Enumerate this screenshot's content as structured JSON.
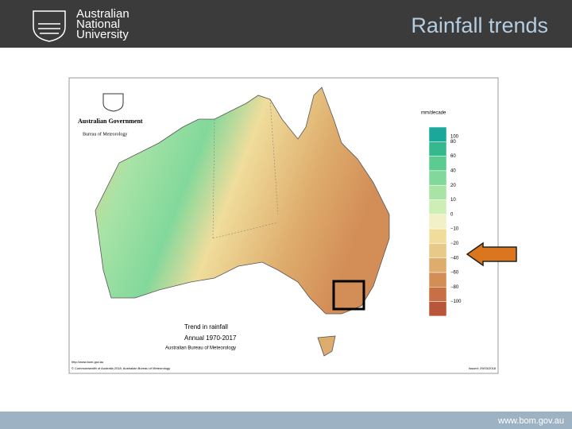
{
  "header": {
    "logo": {
      "line1": "Australian",
      "line2": "National",
      "line3": "University"
    },
    "title": "Rainfall trends"
  },
  "map": {
    "agency": {
      "government": "Australian Government",
      "bureau": "Bureau of Meteorology"
    },
    "legend": {
      "unit": "mm/decade",
      "items": [
        {
          "label": "100",
          "color": "#1aa89a"
        },
        {
          "label": "80",
          "color": "#36b88f"
        },
        {
          "label": "60",
          "color": "#5ccb8f"
        },
        {
          "label": "40",
          "color": "#82d89b"
        },
        {
          "label": "20",
          "color": "#a9e3a6"
        },
        {
          "label": "10",
          "color": "#cdeeb5"
        },
        {
          "label": "0",
          "color": "#f2f0c6"
        },
        {
          "label": "−10",
          "color": "#f0dd9c"
        },
        {
          "label": "−20",
          "color": "#e8c987"
        },
        {
          "label": "−40",
          "color": "#deac6c"
        },
        {
          "label": "−60",
          "color": "#d38d57"
        },
        {
          "label": "−80",
          "color": "#c96f45"
        },
        {
          "label": "−100",
          "color": "#b8553a"
        }
      ]
    },
    "caption": {
      "title": "Trend in rainfall",
      "period": "Annual 1970-2017",
      "source": "Australian Bureau of Meteorology"
    },
    "url": "http://www.bom.gov.au",
    "copyright": "© Commonwealth of Australia 2018, Australian Bureau of Meteorology",
    "issued": "Issued: 29/03/2018"
  },
  "footer": {
    "url": "www.bom.gov.au"
  }
}
